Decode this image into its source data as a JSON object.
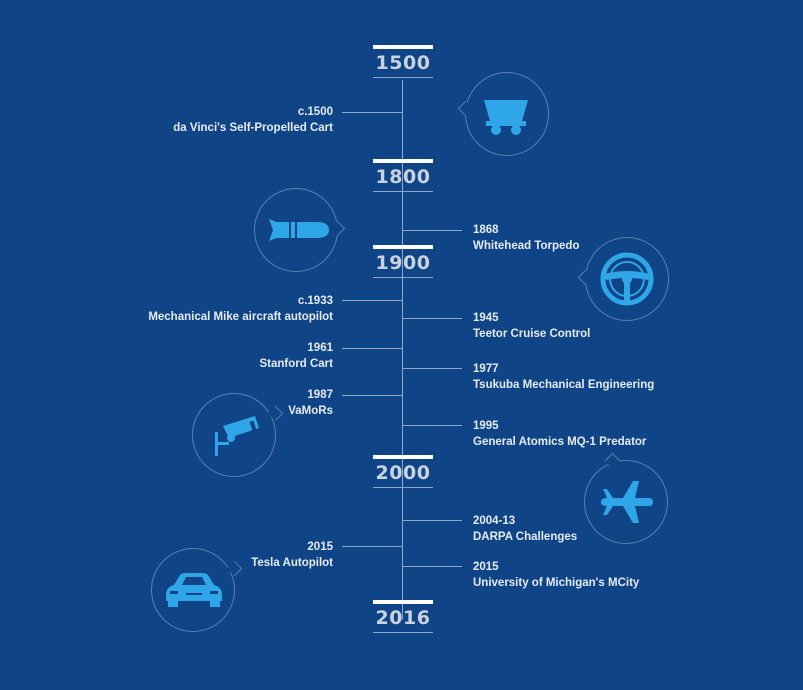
{
  "eras": [
    {
      "label": "1500"
    },
    {
      "label": "1800"
    },
    {
      "label": "1900"
    },
    {
      "label": "2000"
    },
    {
      "label": "2016"
    }
  ],
  "events": [
    {
      "year": "c.1500",
      "title": "da Vinci's Self-Propelled Cart",
      "side": "left"
    },
    {
      "year": "1868",
      "title": "Whitehead Torpedo",
      "side": "right"
    },
    {
      "year": "c.1933",
      "title": "Mechanical Mike aircraft autopilot",
      "side": "left"
    },
    {
      "year": "1945",
      "title": "Teetor Cruise Control",
      "side": "right"
    },
    {
      "year": "1961",
      "title": "Stanford Cart",
      "side": "left"
    },
    {
      "year": "1977",
      "title": "Tsukuba Mechanical Engineering",
      "side": "right"
    },
    {
      "year": "1987",
      "title": "VaMoRs",
      "side": "left"
    },
    {
      "year": "1995",
      "title": "General Atomics MQ-1 Predator",
      "side": "right"
    },
    {
      "year": "2004-13",
      "title": "DARPA Challenges",
      "side": "right"
    },
    {
      "year": "2015",
      "title": "Tesla Autopilot",
      "side": "left"
    },
    {
      "year": "2015",
      "title": "University of Michigan's MCity",
      "side": "right"
    }
  ],
  "icons": [
    "cart-icon",
    "torpedo-icon",
    "steering-wheel-icon",
    "security-camera-icon",
    "airplane-icon",
    "car-icon"
  ],
  "colors": {
    "background": "#0f4486",
    "icon": "#2fa6e8",
    "line": "#8fa7c6",
    "text": "#e6ebf3"
  }
}
